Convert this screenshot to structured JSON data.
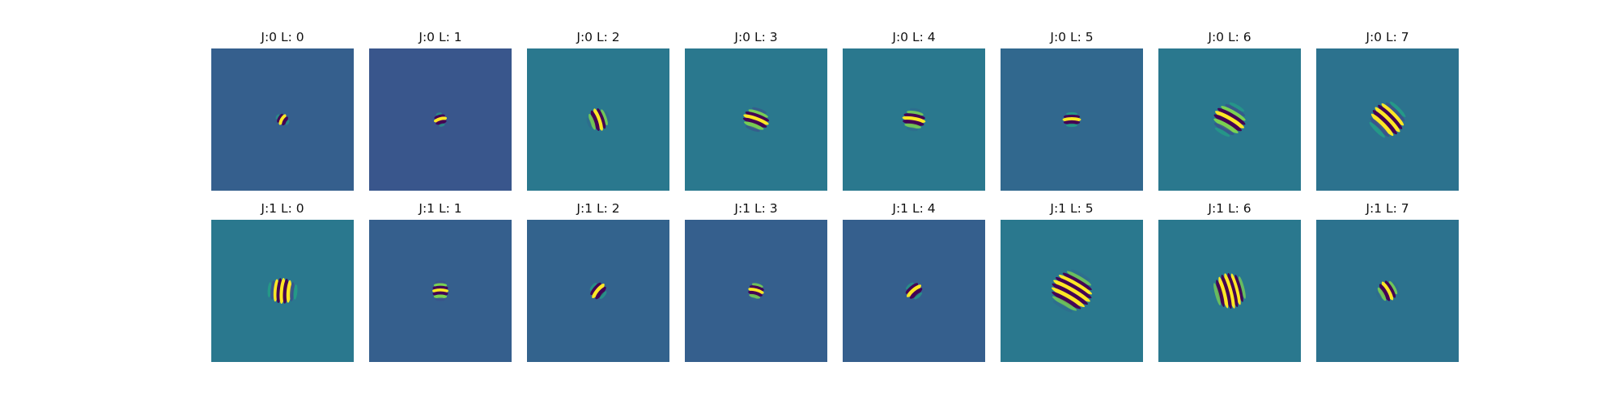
{
  "panels": [
    {
      "label": "J:0 L: 0",
      "background": "#355f8d",
      "angle_deg": 30,
      "sigma": 4,
      "wavelength": 7,
      "aspect": 0.45
    },
    {
      "label": "J:0 L: 1",
      "background": "#39568c",
      "angle_deg": 75,
      "sigma": 4,
      "wavelength": 7,
      "aspect": 0.5
    },
    {
      "label": "J:0 L: 2",
      "background": "#2a788e",
      "angle_deg": 160,
      "sigma": 7,
      "wavelength": 8,
      "aspect": 0.5
    },
    {
      "label": "J:0 L: 3",
      "background": "#2a788e",
      "angle_deg": 110,
      "sigma": 8,
      "wavelength": 8,
      "aspect": 0.5
    },
    {
      "label": "J:0 L: 4",
      "background": "#2a788e",
      "angle_deg": 100,
      "sigma": 7,
      "wavelength": 8,
      "aspect": 0.5
    },
    {
      "label": "J:0 L: 5",
      "background": "#31688e",
      "angle_deg": 90,
      "sigma": 5,
      "wavelength": 7,
      "aspect": 0.55
    },
    {
      "label": "J:0 L: 6",
      "background": "#2a788e",
      "angle_deg": 120,
      "sigma": 11,
      "wavelength": 9,
      "aspect": 0.45
    },
    {
      "label": "J:0 L: 7",
      "background": "#2c728e",
      "angle_deg": 135,
      "sigma": 13,
      "wavelength": 9,
      "aspect": 0.4
    },
    {
      "label": "J:1 L: 0",
      "background": "#2a788e",
      "angle_deg": 5,
      "sigma": 11,
      "wavelength": 8,
      "aspect": 0.35
    },
    {
      "label": "J:1 L: 1",
      "background": "#355f8d",
      "angle_deg": 90,
      "sigma": 8,
      "wavelength": 7,
      "aspect": 0.3
    },
    {
      "label": "J:1 L: 2",
      "background": "#33638d",
      "angle_deg": 40,
      "sigma": 5,
      "wavelength": 8,
      "aspect": 0.55
    },
    {
      "label": "J:1 L: 3",
      "background": "#355f8d",
      "angle_deg": 105,
      "sigma": 6,
      "wavelength": 7,
      "aspect": 0.4
    },
    {
      "label": "J:1 L: 4",
      "background": "#355f8d",
      "angle_deg": 50,
      "sigma": 5,
      "wavelength": 8,
      "aspect": 0.55
    },
    {
      "label": "J:1 L: 5",
      "background": "#2a788e",
      "angle_deg": 120,
      "sigma": 14,
      "wavelength": 9,
      "aspect": 0.45
    },
    {
      "label": "J:1 L: 6",
      "background": "#2a788e",
      "angle_deg": 165,
      "sigma": 12,
      "wavelength": 8,
      "aspect": 0.45
    },
    {
      "label": "J:1 L: 7",
      "background": "#2c728e",
      "angle_deg": 150,
      "sigma": 7,
      "wavelength": 8,
      "aspect": 0.45
    }
  ]
}
